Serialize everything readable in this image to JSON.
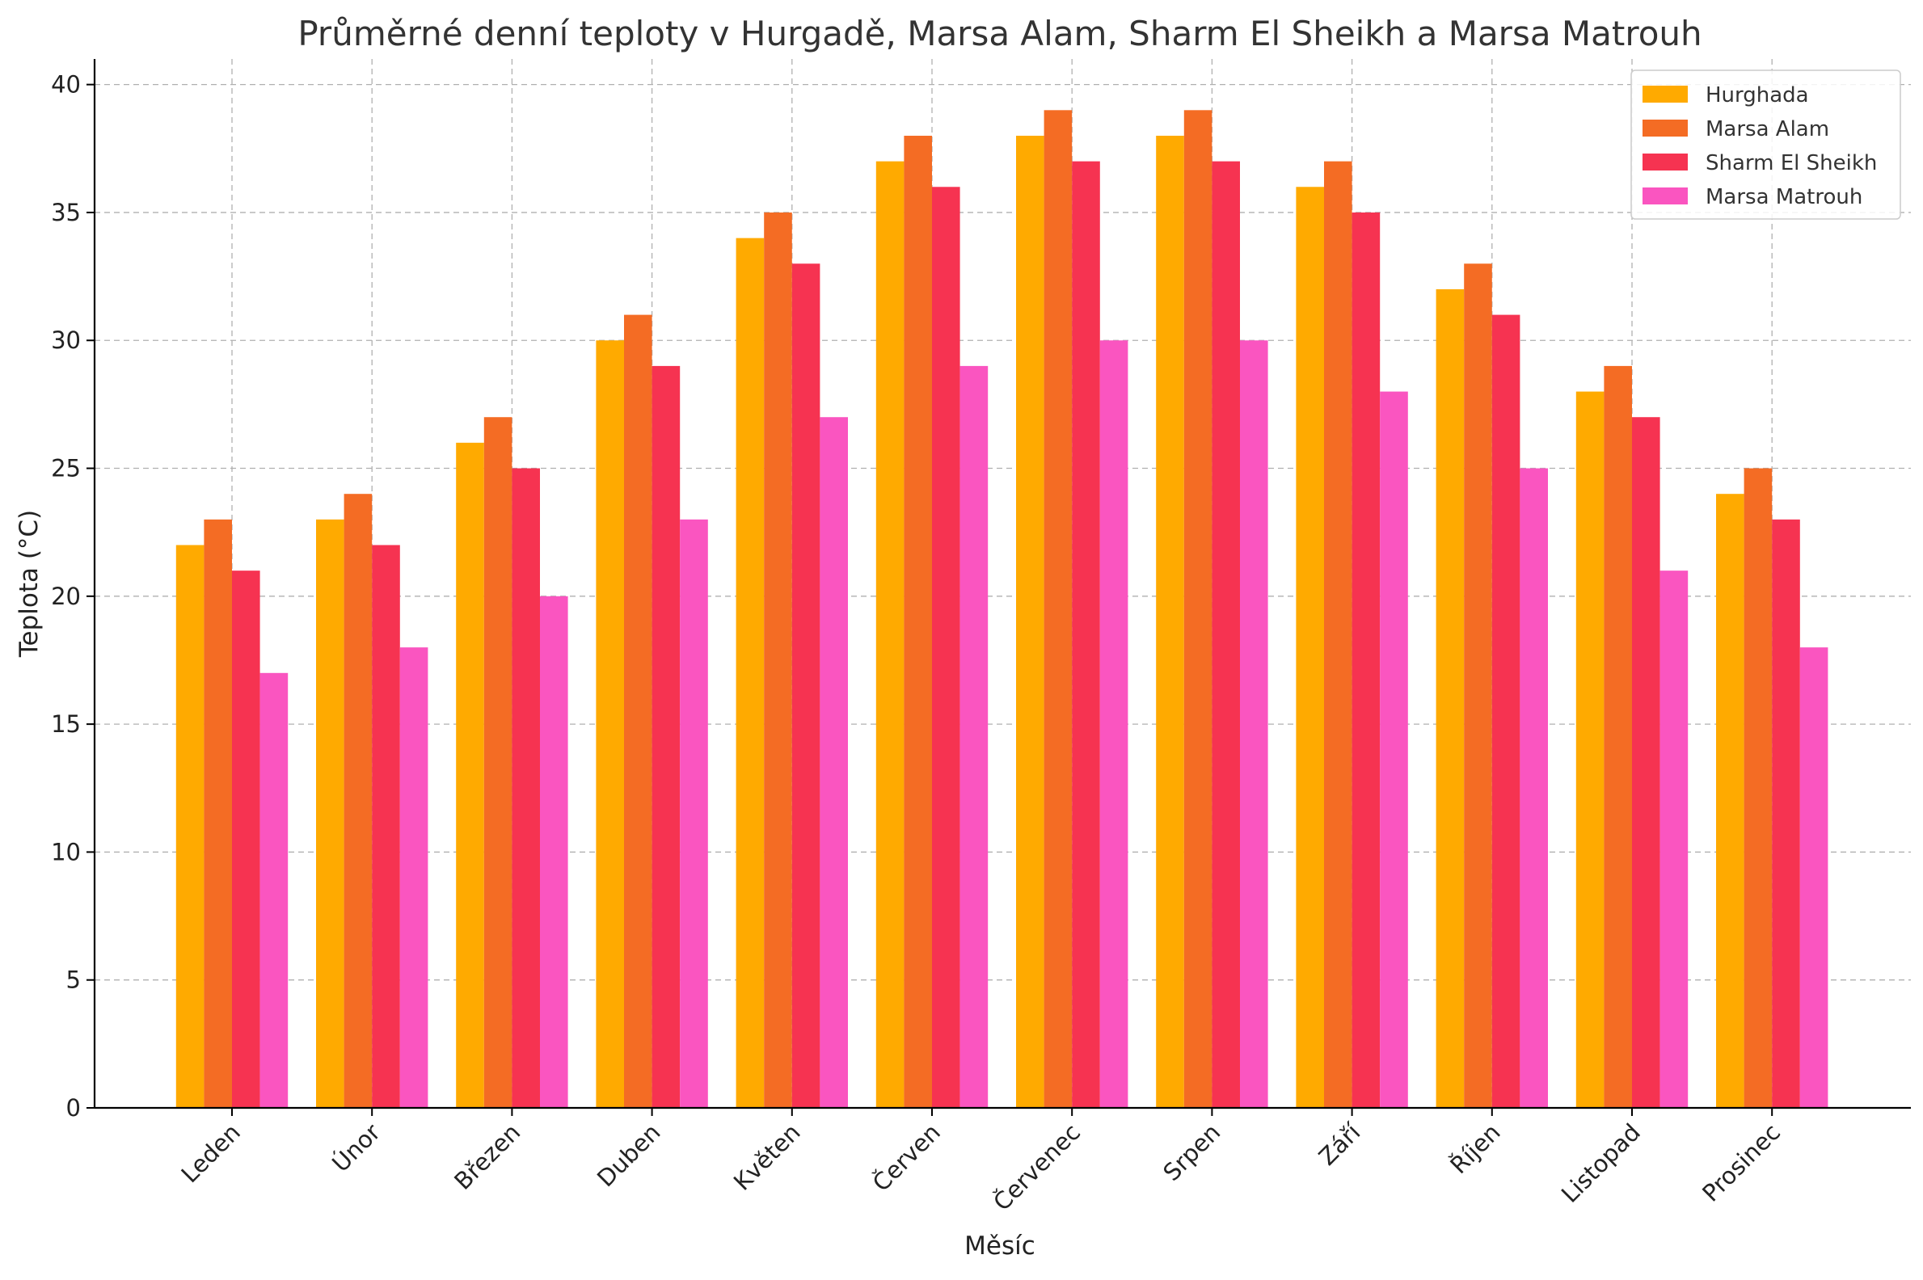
{
  "chart_data": {
    "type": "bar",
    "title": "Průměrné denní teploty v Hurgadě, Marsa Alam, Sharm El Sheikh a Marsa Matrouh",
    "xlabel": "Měsíc",
    "ylabel": "Teplota (°C)",
    "ylim": [
      0,
      41
    ],
    "yticks": [
      0,
      5,
      10,
      15,
      20,
      25,
      30,
      35,
      40
    ],
    "grid": true,
    "legend_position": "top-right",
    "categories": [
      "Leden",
      "Únor",
      "Březen",
      "Duben",
      "Květen",
      "Červen",
      "Červenec",
      "Srpen",
      "Září",
      "Říjen",
      "Listopad",
      "Prosinec"
    ],
    "series": [
      {
        "name": "Hurghada",
        "color": "#FFAA00",
        "values": [
          22,
          23,
          26,
          30,
          34,
          37,
          38,
          38,
          36,
          32,
          28,
          24
        ]
      },
      {
        "name": "Marsa Alam",
        "color": "#F46C24",
        "values": [
          23,
          24,
          27,
          31,
          35,
          38,
          39,
          39,
          37,
          33,
          29,
          25
        ]
      },
      {
        "name": "Sharm El Sheikh",
        "color": "#F63351",
        "values": [
          21,
          22,
          25,
          29,
          33,
          36,
          37,
          37,
          35,
          31,
          27,
          23
        ]
      },
      {
        "name": "Marsa Matrouh",
        "color": "#FA55C0",
        "values": [
          17,
          18,
          20,
          23,
          27,
          29,
          30,
          30,
          28,
          25,
          21,
          18
        ]
      }
    ]
  }
}
